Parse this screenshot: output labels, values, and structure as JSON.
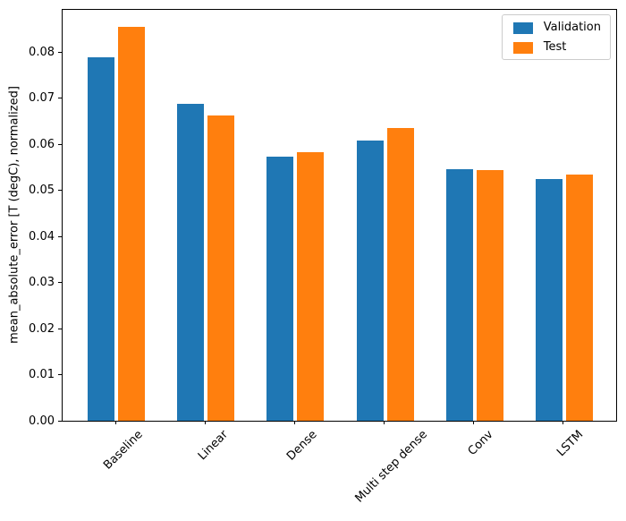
{
  "chart_data": {
    "type": "bar",
    "title": "",
    "xlabel": "",
    "ylabel": "mean_absolute_error [T (degC), normalized]",
    "categories": [
      "Baseline",
      "Linear",
      "Dense",
      "Multi step dense",
      "Conv",
      "LSTM"
    ],
    "series": [
      {
        "name": "Validation",
        "color": "#1f77b4",
        "values": [
          0.0789,
          0.0687,
          0.0573,
          0.0607,
          0.0546,
          0.0524
        ]
      },
      {
        "name": "Test",
        "color": "#ff7f0e",
        "values": [
          0.0854,
          0.0663,
          0.0583,
          0.0634,
          0.0544,
          0.0534
        ]
      }
    ],
    "y_tick_labels": [
      "0.00",
      "0.01",
      "0.02",
      "0.03",
      "0.04",
      "0.05",
      "0.06",
      "0.07",
      "0.08"
    ],
    "y_tick_values": [
      0.0,
      0.01,
      0.02,
      0.03,
      0.04,
      0.05,
      0.06,
      0.07,
      0.08
    ],
    "ylim": [
      0,
      0.0895
    ],
    "x_tick_rotation": 45,
    "legend_position": "upper right",
    "grid": false,
    "bar_width": 0.3,
    "bar_group_offset": 0.17
  }
}
